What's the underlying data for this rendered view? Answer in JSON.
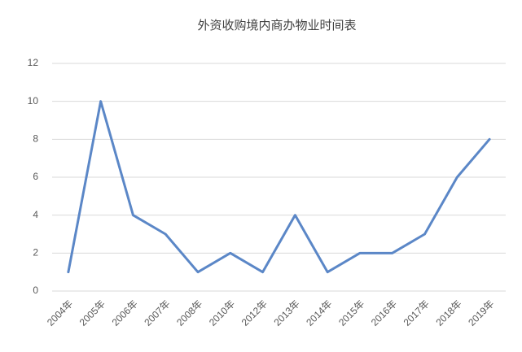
{
  "chart_data": {
    "type": "line",
    "title": "外资收购境内商办物业时间表",
    "categories": [
      "2004年",
      "2005年",
      "2006年",
      "2007年",
      "2008年",
      "2010年",
      "2012年",
      "2013年",
      "2014年",
      "2015年",
      "2016年",
      "2017年",
      "2018年",
      "2019年"
    ],
    "values": [
      1,
      10,
      4,
      3,
      1,
      2,
      1,
      4,
      1,
      2,
      2,
      3,
      6,
      8
    ],
    "color": "#5b87c7",
    "ylim": [
      0,
      12
    ],
    "yticks": [
      0,
      2,
      4,
      6,
      8,
      10,
      12
    ],
    "grid": true
  }
}
